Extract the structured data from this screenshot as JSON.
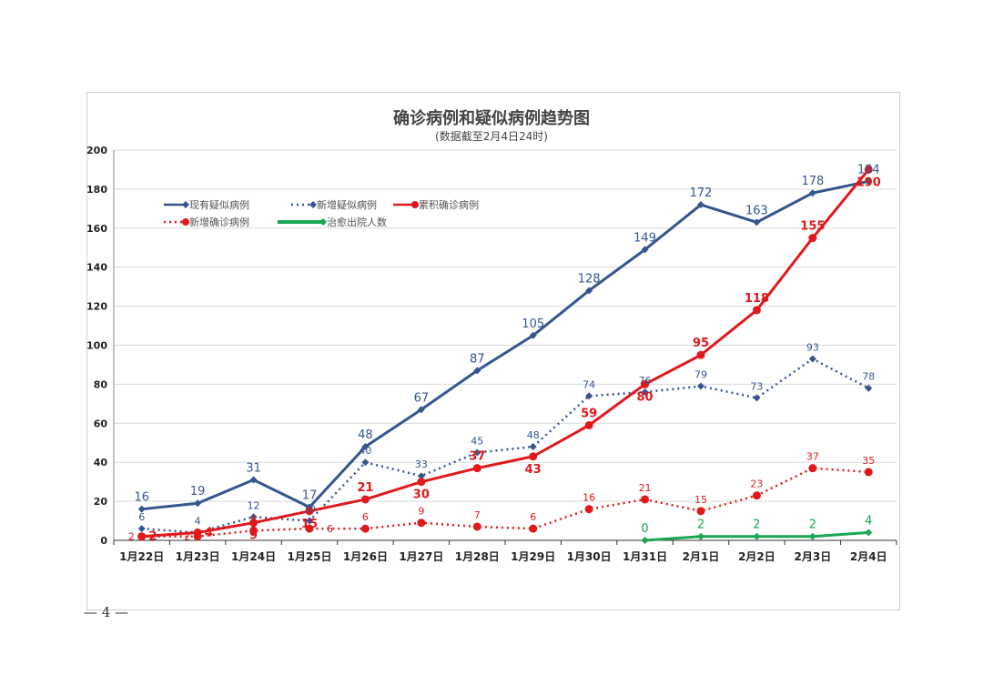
{
  "page_number": "— 4 —",
  "chart_data": {
    "type": "line",
    "title": "确诊病例和疑似病例趋势图",
    "subtitle": "(数据截至2月4日24时)",
    "categories": [
      "1月22日",
      "1月23日",
      "1月24日",
      "1月25日",
      "1月26日",
      "1月27日",
      "1月28日",
      "1月29日",
      "1月30日",
      "1月31日",
      "2月1日",
      "2月2日",
      "2月3日",
      "2月4日"
    ],
    "ylim": [
      0,
      200
    ],
    "yticks": [
      0,
      20,
      40,
      60,
      80,
      100,
      120,
      140,
      160,
      180,
      200
    ],
    "grid": true,
    "legend": "top-left",
    "series": [
      {
        "name": "现有疑似病例",
        "color": "#34568f",
        "style": "solid",
        "marker": "diamond",
        "values": [
          16,
          19,
          31,
          17,
          48,
          67,
          87,
          105,
          128,
          149,
          172,
          163,
          178,
          184
        ]
      },
      {
        "name": "新增疑似病例",
        "color": "#34568f",
        "style": "dotted",
        "marker": "diamond",
        "values": [
          6,
          4,
          12,
          10,
          40,
          33,
          45,
          48,
          74,
          76,
          79,
          73,
          93,
          78
        ]
      },
      {
        "name": "累积确诊病例",
        "color": "#e0191b",
        "style": "solid",
        "marker": "circle",
        "values": [
          2,
          4,
          9,
          15,
          21,
          30,
          37,
          43,
          59,
          80,
          95,
          118,
          155,
          190
        ]
      },
      {
        "name": "新增确诊病例",
        "color": "#e0191b",
        "style": "dotted",
        "marker": "circle",
        "values": [
          2,
          2,
          5,
          6,
          6,
          9,
          7,
          6,
          16,
          21,
          15,
          23,
          37,
          35
        ]
      },
      {
        "name": "治愈出院人数",
        "color": "#1aa653",
        "style": "solid",
        "marker": "diamond",
        "values": [
          null,
          null,
          null,
          null,
          null,
          null,
          null,
          null,
          null,
          0,
          2,
          2,
          2,
          4
        ]
      }
    ]
  }
}
